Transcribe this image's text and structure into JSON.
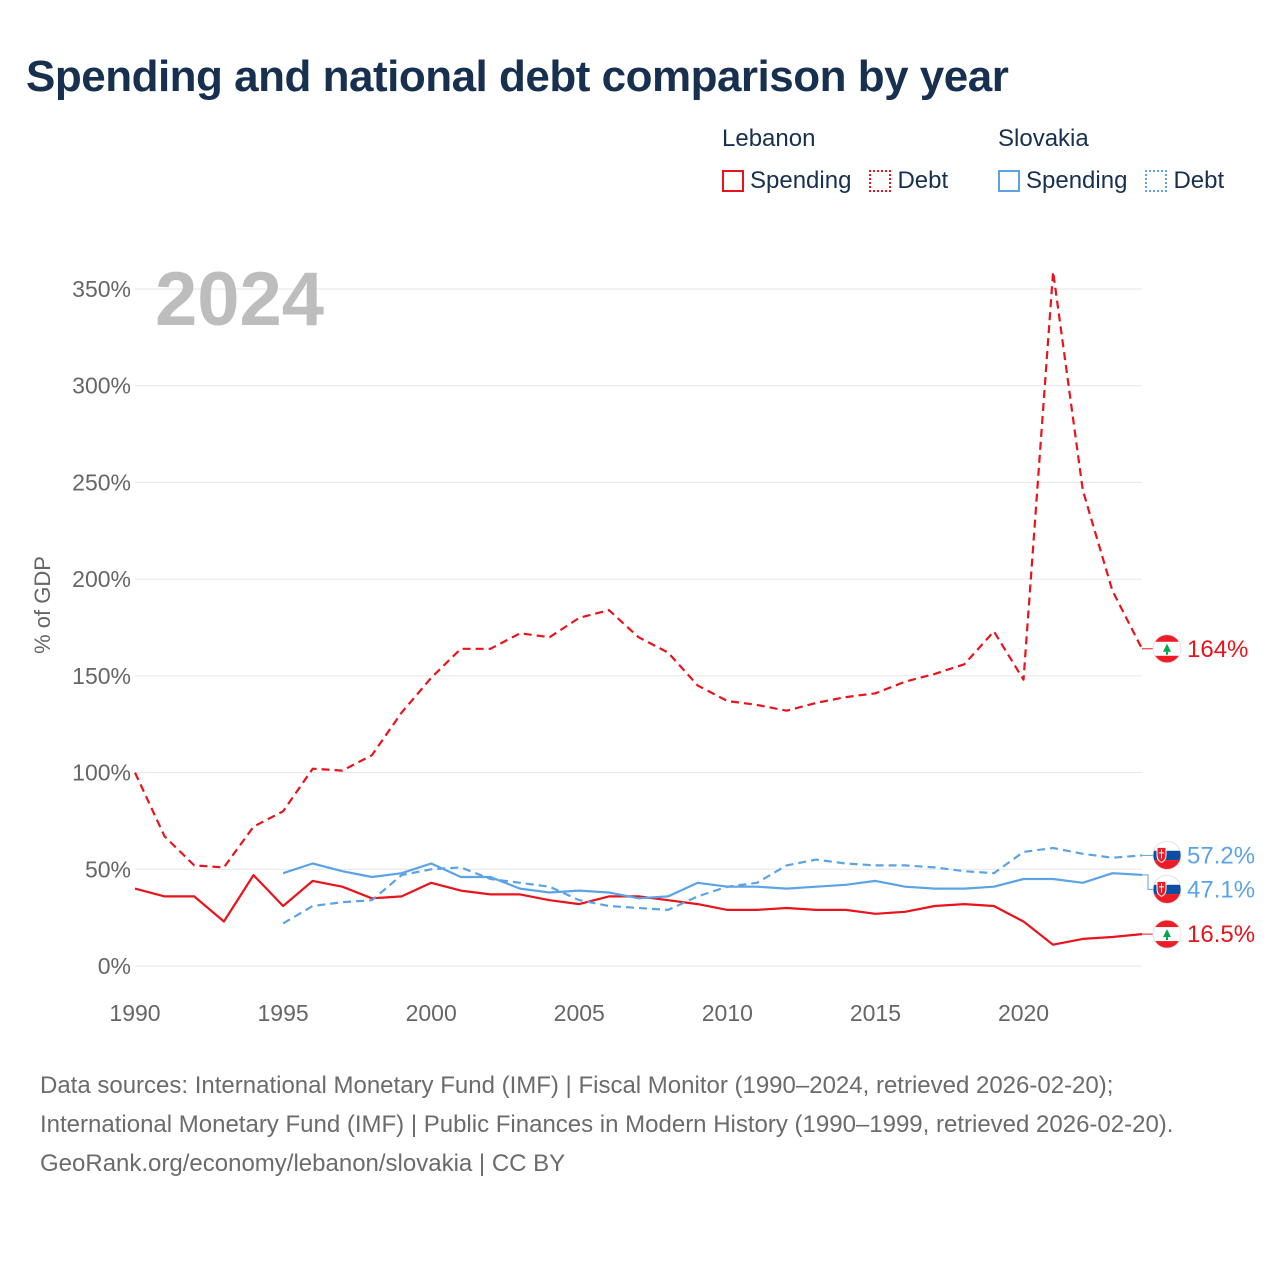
{
  "title": "Spending and national debt comparison by year",
  "legend": {
    "groups": [
      {
        "name": "Lebanon",
        "items": [
          {
            "label": "Spending"
          },
          {
            "label": "Debt"
          }
        ]
      },
      {
        "name": "Slovakia",
        "items": [
          {
            "label": "Spending"
          },
          {
            "label": "Debt"
          }
        ]
      }
    ]
  },
  "year_watermark": "2024",
  "colors": {
    "lebanon": "#e8131b",
    "slovakia": "#5ba3e6",
    "text": "#17304f",
    "axis_text": "#666666",
    "grid": "#e6e6e6",
    "watermark": "#bdbdbd"
  },
  "chart_data": {
    "type": "line",
    "title": "Spending and national debt comparison by year",
    "xlabel": "",
    "ylabel": "% of GDP",
    "xlim": [
      1990,
      2024
    ],
    "ylim": [
      0,
      350
    ],
    "x_ticks": [
      1990,
      1995,
      2000,
      2005,
      2010,
      2015,
      2020
    ],
    "y_ticks": [
      0,
      50,
      100,
      150,
      200,
      250,
      300,
      350
    ],
    "y_tick_labels": [
      "0%",
      "50%",
      "100%",
      "150%",
      "200%",
      "250%",
      "300%",
      "350%"
    ],
    "series": [
      {
        "name": "Lebanon Spending",
        "country": "lebanon",
        "kind": "spending",
        "style": "solid",
        "start_year": 1990,
        "values": [
          40,
          36,
          36,
          23,
          47,
          31,
          44,
          41,
          35,
          36,
          43,
          39,
          37,
          37,
          34,
          32,
          36,
          36,
          34,
          32,
          29,
          29,
          30,
          29,
          29,
          27,
          28,
          31,
          32,
          31,
          23,
          11,
          14,
          15,
          16.5
        ],
        "end_label": "16.5%"
      },
      {
        "name": "Lebanon Debt",
        "country": "lebanon",
        "kind": "debt",
        "style": "dashed",
        "start_year": 1990,
        "values": [
          100,
          67,
          52,
          51,
          72,
          80,
          102,
          101,
          109,
          131,
          149,
          164,
          164,
          172,
          170,
          180,
          184,
          170,
          162,
          145,
          137,
          135,
          132,
          136,
          139,
          141,
          147,
          151,
          156,
          173,
          148,
          359,
          246,
          194,
          164
        ],
        "end_label": "164%"
      },
      {
        "name": "Slovakia Spending",
        "country": "slovakia",
        "kind": "spending",
        "style": "solid",
        "start_year": 1995,
        "values": [
          48,
          53,
          49,
          46,
          48,
          53,
          46,
          46,
          40,
          38,
          39,
          38,
          35,
          36,
          43,
          41,
          41,
          40,
          41,
          42,
          44,
          41,
          40,
          40,
          41,
          45,
          45,
          43,
          48,
          47.1
        ],
        "end_label": "47.1%"
      },
      {
        "name": "Slovakia Debt",
        "country": "slovakia",
        "kind": "debt",
        "style": "dashed",
        "start_year": 1995,
        "values": [
          22,
          31,
          33,
          34,
          47,
          50,
          51,
          45,
          43,
          41,
          34,
          31,
          30,
          29,
          36,
          41,
          43,
          52,
          55,
          53,
          52,
          52,
          51,
          49,
          48,
          59,
          61,
          58,
          56,
          57.2
        ],
        "end_label": "57.2%"
      }
    ]
  },
  "footer": {
    "sources": "Data sources: International Monetary Fund (IMF) | Fiscal Monitor (1990–2024, retrieved 2026-02-20); International Monetary Fund (IMF) | Public Finances in Modern History (1990–1999, retrieved 2026-02-20).",
    "credit": "GeoRank.org/economy/lebanon/slovakia | CC BY"
  }
}
